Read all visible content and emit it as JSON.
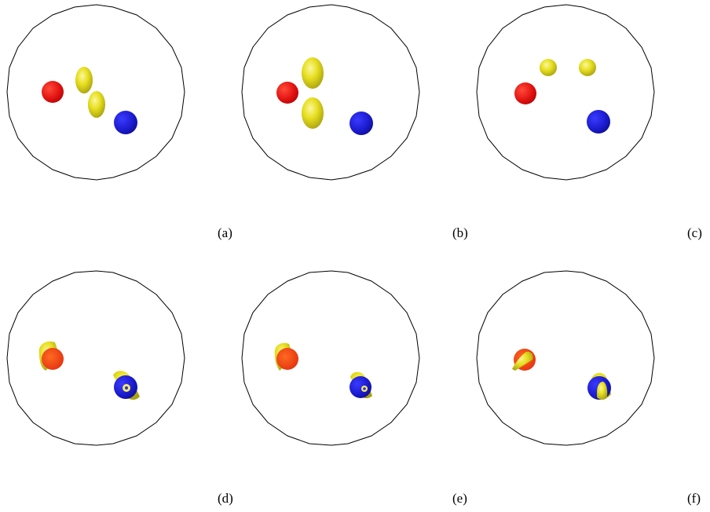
{
  "figure": {
    "panels": [
      {
        "id": "a",
        "label": "(a)"
      },
      {
        "id": "b",
        "label": "(b)"
      },
      {
        "id": "c",
        "label": "(c)"
      },
      {
        "id": "d",
        "label": "(d)"
      },
      {
        "id": "e",
        "label": "(e)"
      },
      {
        "id": "f",
        "label": "(f)"
      }
    ]
  },
  "colors": {
    "red_sphere": "#e01010",
    "blue_sphere": "#1a1acc",
    "yellow_object": "#e8e020",
    "boundary": "#000000"
  }
}
